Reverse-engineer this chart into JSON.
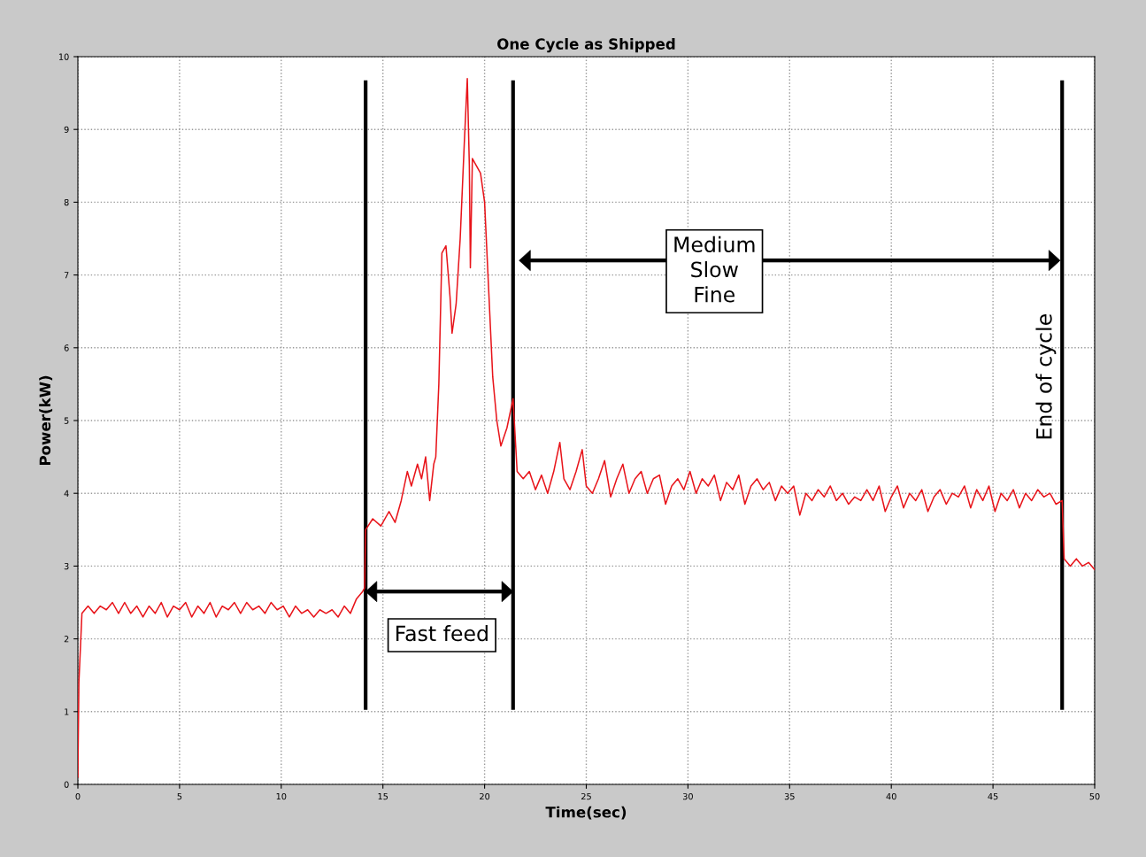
{
  "chart_data": {
    "type": "line",
    "title": "One Cycle as Shipped",
    "xlabel": "Time(sec)",
    "ylabel": "Power(kW)",
    "xlim": [
      0,
      50
    ],
    "ylim": [
      0,
      10
    ],
    "xticks": [
      0,
      5,
      10,
      15,
      20,
      25,
      30,
      35,
      40,
      45,
      50
    ],
    "yticks": [
      0,
      1,
      2,
      3,
      4,
      5,
      6,
      7,
      8,
      9,
      10
    ],
    "grid": true,
    "marker": "none",
    "line_style": "solid",
    "series": [
      {
        "color": "#e8141a",
        "x": [
          0,
          0.05,
          0.2,
          0.5,
          0.8,
          1.1,
          1.4,
          1.7,
          2.0,
          2.3,
          2.6,
          2.9,
          3.2,
          3.5,
          3.8,
          4.1,
          4.4,
          4.7,
          5.0,
          5.3,
          5.6,
          5.9,
          6.2,
          6.5,
          6.8,
          7.1,
          7.4,
          7.7,
          8.0,
          8.3,
          8.6,
          8.9,
          9.2,
          9.5,
          9.8,
          10.1,
          10.4,
          10.7,
          11.0,
          11.3,
          11.6,
          11.9,
          12.2,
          12.5,
          12.8,
          13.1,
          13.4,
          13.7,
          14.0,
          14.1,
          14.15,
          14.5,
          14.9,
          15.3,
          15.6,
          15.9,
          16.2,
          16.4,
          16.7,
          16.9,
          17.1,
          17.3,
          17.5,
          17.6,
          17.75,
          17.9,
          18.1,
          18.3,
          18.4,
          18.6,
          18.8,
          19.0,
          19.15,
          19.25,
          19.3,
          19.4,
          19.6,
          19.8,
          20.0,
          20.2,
          20.4,
          20.6,
          20.8,
          21.1,
          21.4,
          21.6,
          21.9,
          22.2,
          22.5,
          22.8,
          23.1,
          23.4,
          23.7,
          23.9,
          24.2,
          24.5,
          24.8,
          25.0,
          25.3,
          25.6,
          25.9,
          26.2,
          26.5,
          26.8,
          27.1,
          27.4,
          27.7,
          28.0,
          28.3,
          28.6,
          28.9,
          29.2,
          29.5,
          29.8,
          30.1,
          30.4,
          30.7,
          31.0,
          31.3,
          31.6,
          31.9,
          32.2,
          32.5,
          32.8,
          33.1,
          33.4,
          33.7,
          34.0,
          34.3,
          34.6,
          34.9,
          35.2,
          35.5,
          35.8,
          36.1,
          36.4,
          36.7,
          37.0,
          37.3,
          37.6,
          37.9,
          38.2,
          38.5,
          38.8,
          39.1,
          39.4,
          39.7,
          40.0,
          40.3,
          40.6,
          40.9,
          41.2,
          41.5,
          41.8,
          42.1,
          42.4,
          42.7,
          43.0,
          43.3,
          43.6,
          43.9,
          44.2,
          44.5,
          44.8,
          45.1,
          45.4,
          45.7,
          46.0,
          46.3,
          46.6,
          46.9,
          47.2,
          47.5,
          47.8,
          48.1,
          48.4,
          48.5,
          48.8,
          49.1,
          49.4,
          49.7,
          50
        ],
        "values": [
          0.1,
          1.4,
          2.35,
          2.45,
          2.35,
          2.45,
          2.4,
          2.5,
          2.35,
          2.5,
          2.35,
          2.45,
          2.3,
          2.45,
          2.35,
          2.5,
          2.3,
          2.45,
          2.4,
          2.5,
          2.3,
          2.45,
          2.35,
          2.5,
          2.3,
          2.45,
          2.4,
          2.5,
          2.35,
          2.5,
          2.4,
          2.45,
          2.35,
          2.5,
          2.4,
          2.45,
          2.3,
          2.45,
          2.35,
          2.4,
          2.3,
          2.4,
          2.35,
          2.4,
          2.3,
          2.45,
          2.35,
          2.55,
          2.65,
          2.7,
          3.5,
          3.65,
          3.55,
          3.75,
          3.6,
          3.9,
          4.3,
          4.1,
          4.4,
          4.2,
          4.5,
          3.9,
          4.4,
          4.5,
          5.5,
          7.3,
          7.4,
          6.7,
          6.2,
          6.6,
          7.5,
          8.8,
          9.7,
          8.5,
          7.1,
          8.6,
          8.5,
          8.4,
          8.0,
          6.8,
          5.6,
          5.0,
          4.65,
          4.9,
          5.3,
          4.3,
          4.2,
          4.3,
          4.05,
          4.25,
          4.0,
          4.3,
          4.7,
          4.2,
          4.05,
          4.3,
          4.6,
          4.1,
          4.0,
          4.2,
          4.45,
          3.95,
          4.2,
          4.4,
          4.0,
          4.2,
          4.3,
          4.0,
          4.2,
          4.25,
          3.85,
          4.1,
          4.2,
          4.05,
          4.3,
          4.0,
          4.2,
          4.1,
          4.25,
          3.9,
          4.15,
          4.05,
          4.25,
          3.85,
          4.1,
          4.2,
          4.05,
          4.15,
          3.9,
          4.1,
          4.0,
          4.1,
          3.7,
          4.0,
          3.9,
          4.05,
          3.95,
          4.1,
          3.9,
          4.0,
          3.85,
          3.95,
          3.9,
          4.05,
          3.9,
          4.1,
          3.75,
          3.95,
          4.1,
          3.8,
          4.0,
          3.9,
          4.05,
          3.75,
          3.95,
          4.05,
          3.85,
          4.0,
          3.95,
          4.1,
          3.8,
          4.05,
          3.9,
          4.1,
          3.75,
          4.0,
          3.9,
          4.05,
          3.8,
          4.0,
          3.9,
          4.05,
          3.95,
          4.0,
          3.85,
          3.9,
          3.1,
          3.0,
          3.1,
          3.0,
          3.05,
          2.95
        ]
      }
    ],
    "ref_lines": [
      {
        "axis": "x",
        "value": 14.15,
        "color": "#000000"
      },
      {
        "axis": "x",
        "value": 21.4,
        "color": "#000000"
      },
      {
        "axis": "x",
        "value": 48.4,
        "color": "#000000"
      }
    ],
    "annotations": [
      "Fast feed",
      "Medium\nSlow\nFine",
      "End of cycle"
    ]
  }
}
